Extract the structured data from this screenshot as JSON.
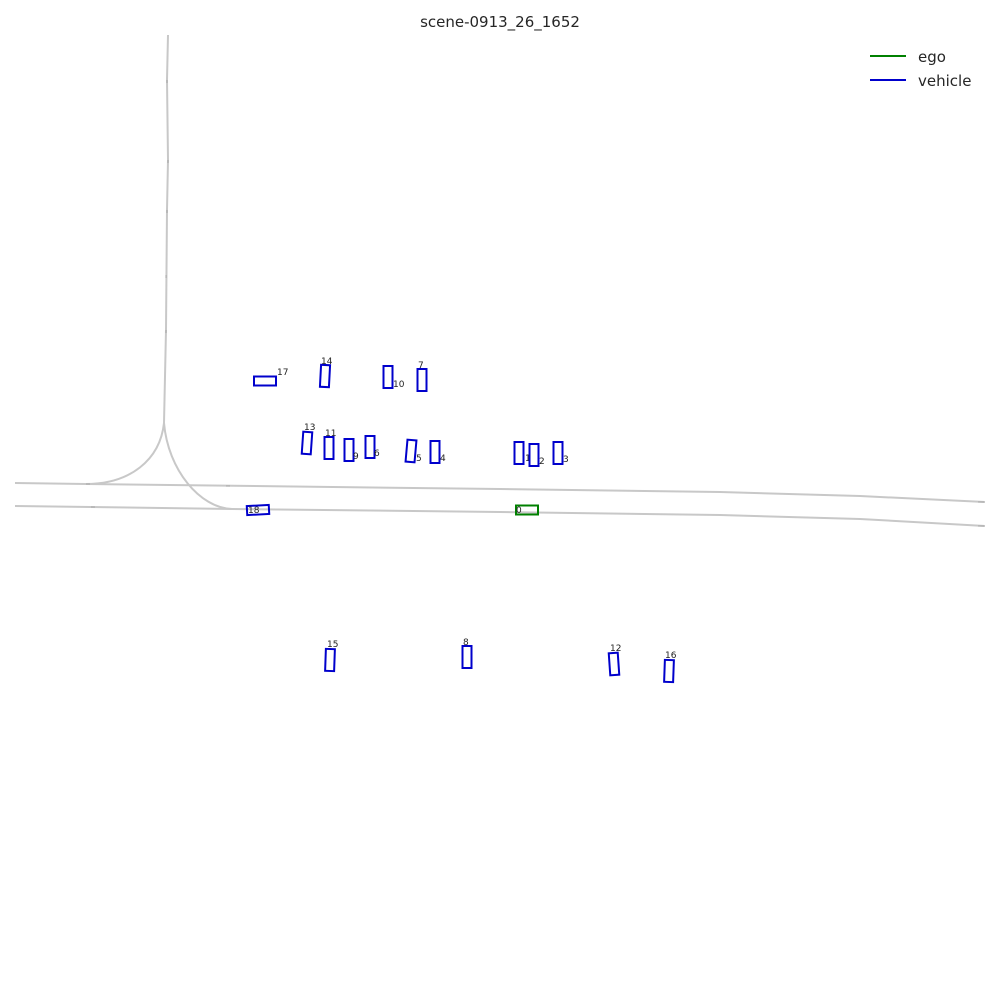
{
  "title": "scene-0913_26_1652",
  "colors": {
    "ego": "#008000",
    "vehicle": "#0000cc",
    "lane": "#c8c8c8"
  },
  "legend": [
    {
      "label": "ego",
      "color": "#008000"
    },
    {
      "label": "vehicle",
      "color": "#0000cc"
    }
  ],
  "agents": [
    {
      "id": "0",
      "kind": "ego"
    },
    {
      "id": "1",
      "kind": "vehicle"
    },
    {
      "id": "2",
      "kind": "vehicle"
    },
    {
      "id": "3",
      "kind": "vehicle"
    },
    {
      "id": "4",
      "kind": "vehicle"
    },
    {
      "id": "5",
      "kind": "vehicle"
    },
    {
      "id": "6",
      "kind": "vehicle"
    },
    {
      "id": "7",
      "kind": "vehicle"
    },
    {
      "id": "8",
      "kind": "vehicle"
    },
    {
      "id": "9",
      "kind": "vehicle"
    },
    {
      "id": "10",
      "kind": "vehicle"
    },
    {
      "id": "11",
      "kind": "vehicle"
    },
    {
      "id": "12",
      "kind": "vehicle"
    },
    {
      "id": "13",
      "kind": "vehicle"
    },
    {
      "id": "14",
      "kind": "vehicle"
    },
    {
      "id": "15",
      "kind": "vehicle"
    },
    {
      "id": "16",
      "kind": "vehicle"
    },
    {
      "id": "17",
      "kind": "vehicle"
    },
    {
      "id": "18",
      "kind": "vehicle"
    }
  ]
}
